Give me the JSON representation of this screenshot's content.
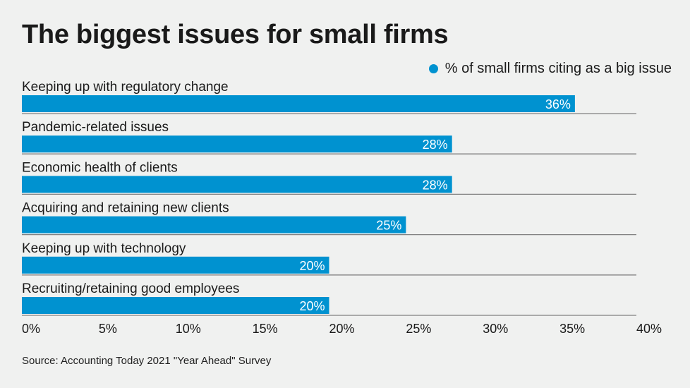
{
  "chart_data": {
    "type": "bar",
    "orientation": "horizontal",
    "title": "The biggest issues for small firms",
    "categories": [
      "Keeping up with regulatory change",
      "Pandemic-related issues",
      "Economic health of clients",
      "Acquiring and retaining new clients",
      "Keeping up with technology",
      "Recruiting/retaining good employees"
    ],
    "series": [
      {
        "name": "% of small firms citing as a big issue",
        "values": [
          36,
          28,
          28,
          25,
          20,
          20
        ]
      }
    ],
    "data_labels": [
      "36%",
      "28%",
      "28%",
      "25%",
      "20%",
      "20%"
    ],
    "xlim": [
      0,
      40
    ],
    "xticks": [
      "0%",
      "5%",
      "10%",
      "15%",
      "20%",
      "25%",
      "30%",
      "35%",
      "40%"
    ],
    "legend_position": "top-right",
    "bar_color": "#0092d0",
    "background": "#f0f1f0",
    "source": "Source: Accounting Today 2021 \"Year Ahead\" Survey"
  }
}
